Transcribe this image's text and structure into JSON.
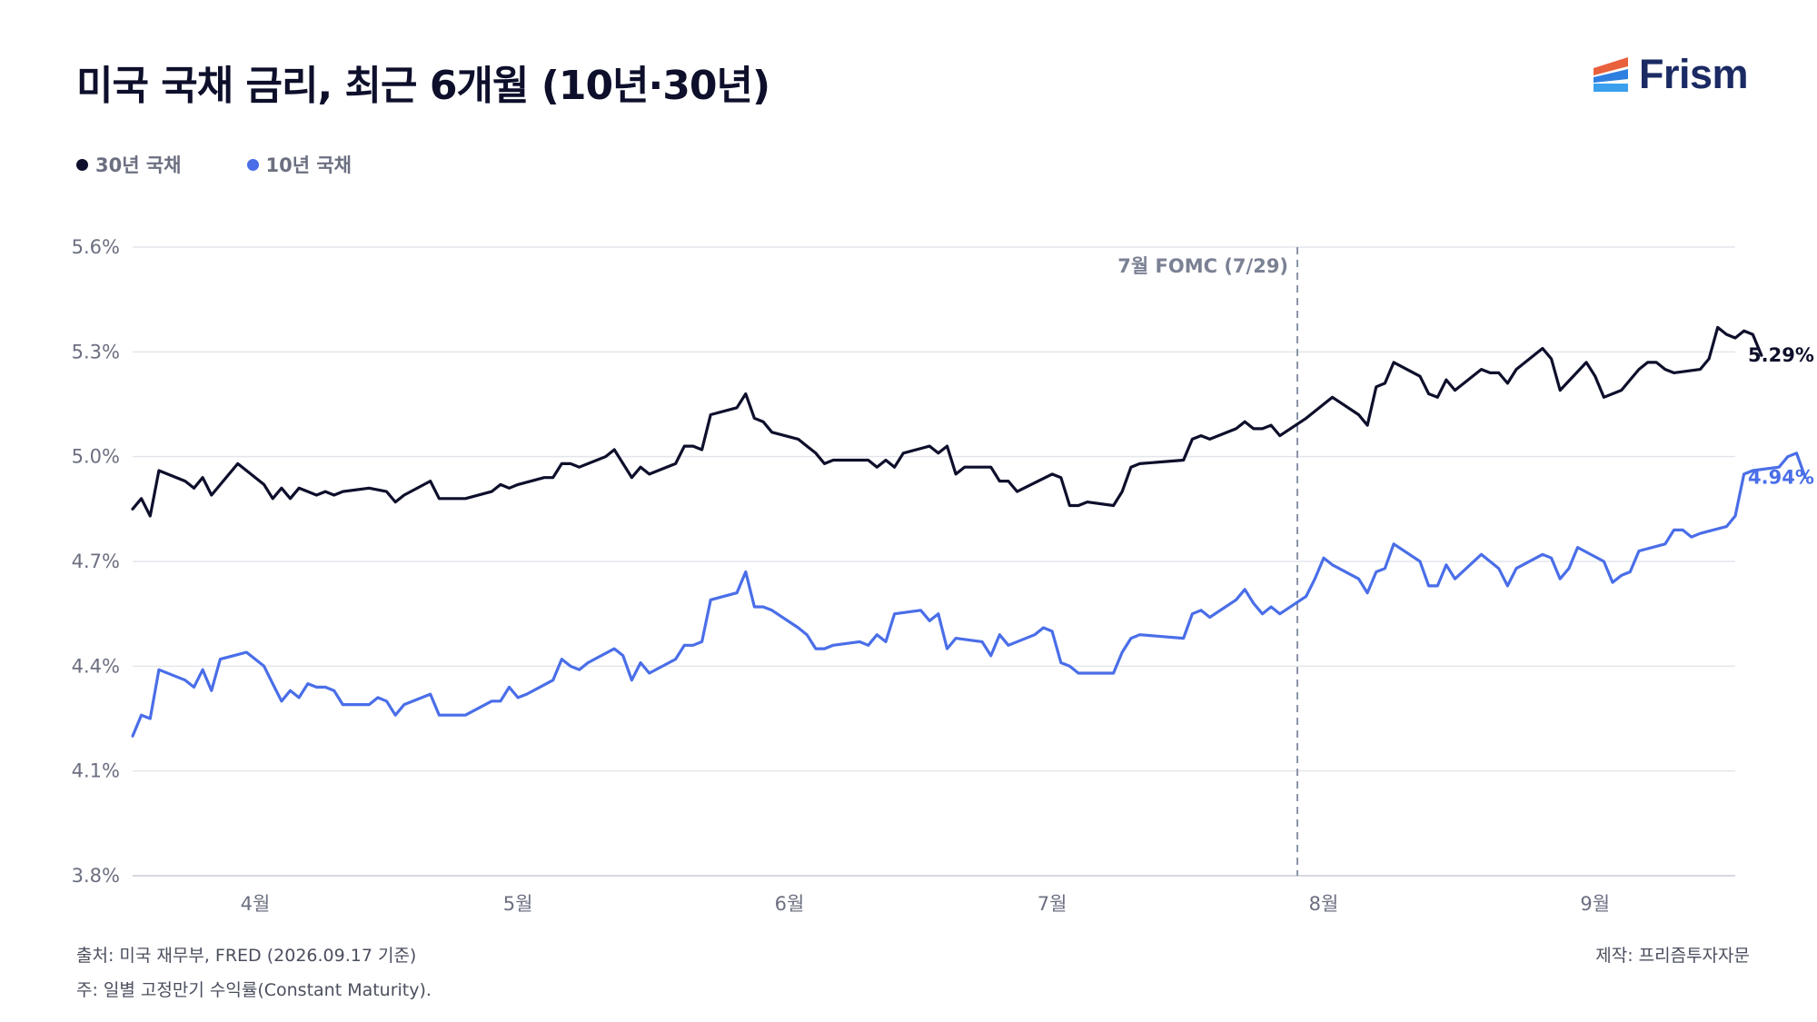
{
  "title": "미국 국채 금리, 최근 6개월 (10년·30년)",
  "brand": {
    "name": "Frism",
    "logo_icon": "stacked-stripes-logo-icon",
    "colors": [
      "#e8603c",
      "#2e7fe0",
      "#3aa0ee"
    ]
  },
  "legend": [
    {
      "label": "30년 국채",
      "color": "#0d0f2b"
    },
    {
      "label": "10년 국채",
      "color": "#4a6ee8"
    }
  ],
  "footer": {
    "source": "출처: 미국 재무부, FRED (2026.09.17 기준)",
    "note": "주: 일별 고정만기 수익률(Constant Maturity).",
    "credit": "제작: 프리즘투자자문"
  },
  "chart_data": {
    "type": "line",
    "x_type": "date",
    "xlim": [
      "2026-03-18",
      "2026-09-17"
    ],
    "ylim": [
      3.8,
      5.6
    ],
    "y_ticks": [
      "5.6%",
      "5.3%",
      "5.0%",
      "4.7%",
      "4.4%",
      "4.1%",
      "3.8%"
    ],
    "x_ticks": [
      {
        "date": "2026-04-01",
        "label": "4월"
      },
      {
        "date": "2026-05-01",
        "label": "5월"
      },
      {
        "date": "2026-06-01",
        "label": "6월"
      },
      {
        "date": "2026-07-01",
        "label": "7월"
      },
      {
        "date": "2026-08-01",
        "label": "8월"
      },
      {
        "date": "2026-09-01",
        "label": "9월"
      }
    ],
    "grid": "horizontal",
    "annotation": {
      "date": "2026-07-29",
      "label": "7월 FOMC (7/29)",
      "style": "dashed-vertical"
    },
    "series": [
      {
        "name": "30년 국채",
        "color": "#0d0f2b",
        "end_label": "5.29%",
        "points": [
          [
            "2026-03-18",
            4.85
          ],
          [
            "2026-03-19",
            4.88
          ],
          [
            "2026-03-20",
            4.83
          ],
          [
            "2026-03-21",
            4.96
          ],
          [
            "2026-03-24",
            4.93
          ],
          [
            "2026-03-25",
            4.91
          ],
          [
            "2026-03-26",
            4.94
          ],
          [
            "2026-03-27",
            4.89
          ],
          [
            "2026-03-30",
            4.98
          ],
          [
            "2026-03-31",
            4.96
          ],
          [
            "2026-04-02",
            4.92
          ],
          [
            "2026-04-03",
            4.88
          ],
          [
            "2026-04-04",
            4.91
          ],
          [
            "2026-04-05",
            4.88
          ],
          [
            "2026-04-06",
            4.91
          ],
          [
            "2026-04-07",
            4.9
          ],
          [
            "2026-04-08",
            4.89
          ],
          [
            "2026-04-09",
            4.9
          ],
          [
            "2026-04-10",
            4.89
          ],
          [
            "2026-04-11",
            4.9
          ],
          [
            "2026-04-14",
            4.91
          ],
          [
            "2026-04-16",
            4.9
          ],
          [
            "2026-04-17",
            4.87
          ],
          [
            "2026-04-18",
            4.89
          ],
          [
            "2026-04-21",
            4.93
          ],
          [
            "2026-04-22",
            4.88
          ],
          [
            "2026-04-23",
            4.88
          ],
          [
            "2026-04-24",
            4.88
          ],
          [
            "2026-04-25",
            4.88
          ],
          [
            "2026-04-28",
            4.9
          ],
          [
            "2026-04-29",
            4.92
          ],
          [
            "2026-04-30",
            4.91
          ],
          [
            "2026-05-01",
            4.92
          ],
          [
            "2026-05-04",
            4.94
          ],
          [
            "2026-05-05",
            4.94
          ],
          [
            "2026-05-06",
            4.98
          ],
          [
            "2026-05-07",
            4.98
          ],
          [
            "2026-05-08",
            4.97
          ],
          [
            "2026-05-11",
            5.0
          ],
          [
            "2026-05-12",
            5.02
          ],
          [
            "2026-05-14",
            4.94
          ],
          [
            "2026-05-15",
            4.97
          ],
          [
            "2026-05-16",
            4.95
          ],
          [
            "2026-05-19",
            4.98
          ],
          [
            "2026-05-20",
            5.03
          ],
          [
            "2026-05-21",
            5.03
          ],
          [
            "2026-05-22",
            5.02
          ],
          [
            "2026-05-23",
            5.12
          ],
          [
            "2026-05-26",
            5.14
          ],
          [
            "2026-05-27",
            5.18
          ],
          [
            "2026-05-28",
            5.11
          ],
          [
            "2026-05-29",
            5.1
          ],
          [
            "2026-05-30",
            5.07
          ],
          [
            "2026-06-02",
            5.05
          ],
          [
            "2026-06-03",
            5.03
          ],
          [
            "2026-06-04",
            5.01
          ],
          [
            "2026-06-05",
            4.98
          ],
          [
            "2026-06-06",
            4.99
          ],
          [
            "2026-06-09",
            4.99
          ],
          [
            "2026-06-10",
            4.99
          ],
          [
            "2026-06-11",
            4.97
          ],
          [
            "2026-06-12",
            4.99
          ],
          [
            "2026-06-13",
            4.97
          ],
          [
            "2026-06-14",
            5.01
          ],
          [
            "2026-06-17",
            5.03
          ],
          [
            "2026-06-18",
            5.01
          ],
          [
            "2026-06-19",
            5.03
          ],
          [
            "2026-06-20",
            4.95
          ],
          [
            "2026-06-21",
            4.97
          ],
          [
            "2026-06-24",
            4.97
          ],
          [
            "2026-06-25",
            4.93
          ],
          [
            "2026-06-26",
            4.93
          ],
          [
            "2026-06-27",
            4.9
          ],
          [
            "2026-07-01",
            4.95
          ],
          [
            "2026-07-02",
            4.94
          ],
          [
            "2026-07-03",
            4.86
          ],
          [
            "2026-07-04",
            4.86
          ],
          [
            "2026-07-05",
            4.87
          ],
          [
            "2026-07-08",
            4.86
          ],
          [
            "2026-07-09",
            4.9
          ],
          [
            "2026-07-10",
            4.97
          ],
          [
            "2026-07-11",
            4.98
          ],
          [
            "2026-07-16",
            4.99
          ],
          [
            "2026-07-17",
            5.05
          ],
          [
            "2026-07-18",
            5.06
          ],
          [
            "2026-07-19",
            5.05
          ],
          [
            "2026-07-22",
            5.08
          ],
          [
            "2026-07-23",
            5.1
          ],
          [
            "2026-07-24",
            5.08
          ],
          [
            "2026-07-25",
            5.08
          ],
          [
            "2026-07-26",
            5.09
          ],
          [
            "2026-07-27",
            5.06
          ],
          [
            "2026-07-30",
            5.11
          ],
          [
            "2026-08-02",
            5.17
          ],
          [
            "2026-08-05",
            5.12
          ],
          [
            "2026-08-06",
            5.09
          ],
          [
            "2026-08-07",
            5.2
          ],
          [
            "2026-08-08",
            5.21
          ],
          [
            "2026-08-09",
            5.27
          ],
          [
            "2026-08-12",
            5.23
          ],
          [
            "2026-08-13",
            5.18
          ],
          [
            "2026-08-14",
            5.17
          ],
          [
            "2026-08-15",
            5.22
          ],
          [
            "2026-08-16",
            5.19
          ],
          [
            "2026-08-19",
            5.25
          ],
          [
            "2026-08-20",
            5.24
          ],
          [
            "2026-08-21",
            5.24
          ],
          [
            "2026-08-22",
            5.21
          ],
          [
            "2026-08-23",
            5.25
          ],
          [
            "2026-08-26",
            5.31
          ],
          [
            "2026-08-27",
            5.28
          ],
          [
            "2026-08-28",
            5.19
          ],
          [
            "2026-08-31",
            5.27
          ],
          [
            "2026-09-01",
            5.23
          ],
          [
            "2026-09-02",
            5.17
          ],
          [
            "2026-09-04",
            5.19
          ],
          [
            "2026-09-05",
            5.22
          ],
          [
            "2026-09-06",
            5.25
          ],
          [
            "2026-09-07",
            5.27
          ],
          [
            "2026-09-08",
            5.27
          ],
          [
            "2026-09-09",
            5.25
          ],
          [
            "2026-09-10",
            5.24
          ],
          [
            "2026-09-13",
            5.25
          ],
          [
            "2026-09-14",
            5.28
          ],
          [
            "2026-09-15",
            5.37
          ],
          [
            "2026-09-16",
            5.35
          ],
          [
            "2026-09-17",
            5.34
          ],
          [
            "2026-09-18",
            5.36
          ],
          [
            "2026-09-19",
            5.35
          ],
          [
            "2026-09-20",
            5.29
          ]
        ]
      },
      {
        "name": "10년 국채",
        "color": "#4a6ee8",
        "end_label": "4.94%",
        "points": [
          [
            "2026-03-18",
            4.2
          ],
          [
            "2026-03-19",
            4.26
          ],
          [
            "2026-03-20",
            4.25
          ],
          [
            "2026-03-21",
            4.39
          ],
          [
            "2026-03-24",
            4.36
          ],
          [
            "2026-03-25",
            4.34
          ],
          [
            "2026-03-26",
            4.39
          ],
          [
            "2026-03-27",
            4.33
          ],
          [
            "2026-03-28",
            4.42
          ],
          [
            "2026-03-31",
            4.44
          ],
          [
            "2026-04-02",
            4.4
          ],
          [
            "2026-04-03",
            4.35
          ],
          [
            "2026-04-04",
            4.3
          ],
          [
            "2026-04-05",
            4.33
          ],
          [
            "2026-04-06",
            4.31
          ],
          [
            "2026-04-07",
            4.35
          ],
          [
            "2026-04-08",
            4.34
          ],
          [
            "2026-04-09",
            4.34
          ],
          [
            "2026-04-10",
            4.33
          ],
          [
            "2026-04-11",
            4.29
          ],
          [
            "2026-04-14",
            4.29
          ],
          [
            "2026-04-15",
            4.31
          ],
          [
            "2026-04-16",
            4.3
          ],
          [
            "2026-04-17",
            4.26
          ],
          [
            "2026-04-18",
            4.29
          ],
          [
            "2026-04-21",
            4.32
          ],
          [
            "2026-04-22",
            4.26
          ],
          [
            "2026-04-23",
            4.26
          ],
          [
            "2026-04-24",
            4.26
          ],
          [
            "2026-04-25",
            4.26
          ],
          [
            "2026-04-28",
            4.3
          ],
          [
            "2026-04-29",
            4.3
          ],
          [
            "2026-04-30",
            4.34
          ],
          [
            "2026-05-01",
            4.31
          ],
          [
            "2026-05-02",
            4.32
          ],
          [
            "2026-05-05",
            4.36
          ],
          [
            "2026-05-06",
            4.42
          ],
          [
            "2026-05-07",
            4.4
          ],
          [
            "2026-05-08",
            4.39
          ],
          [
            "2026-05-09",
            4.41
          ],
          [
            "2026-05-12",
            4.45
          ],
          [
            "2026-05-13",
            4.43
          ],
          [
            "2026-05-14",
            4.36
          ],
          [
            "2026-05-15",
            4.41
          ],
          [
            "2026-05-16",
            4.38
          ],
          [
            "2026-05-19",
            4.42
          ],
          [
            "2026-05-20",
            4.46
          ],
          [
            "2026-05-21",
            4.46
          ],
          [
            "2026-05-22",
            4.47
          ],
          [
            "2026-05-23",
            4.59
          ],
          [
            "2026-05-26",
            4.61
          ],
          [
            "2026-05-27",
            4.67
          ],
          [
            "2026-05-28",
            4.57
          ],
          [
            "2026-05-29",
            4.57
          ],
          [
            "2026-05-30",
            4.56
          ],
          [
            "2026-06-02",
            4.51
          ],
          [
            "2026-06-03",
            4.49
          ],
          [
            "2026-06-04",
            4.45
          ],
          [
            "2026-06-05",
            4.45
          ],
          [
            "2026-06-06",
            4.46
          ],
          [
            "2026-06-09",
            4.47
          ],
          [
            "2026-06-10",
            4.46
          ],
          [
            "2026-06-11",
            4.49
          ],
          [
            "2026-06-12",
            4.47
          ],
          [
            "2026-06-13",
            4.55
          ],
          [
            "2026-06-16",
            4.56
          ],
          [
            "2026-06-17",
            4.53
          ],
          [
            "2026-06-18",
            4.55
          ],
          [
            "2026-06-19",
            4.45
          ],
          [
            "2026-06-20",
            4.48
          ],
          [
            "2026-06-23",
            4.47
          ],
          [
            "2026-06-24",
            4.43
          ],
          [
            "2026-06-25",
            4.49
          ],
          [
            "2026-06-26",
            4.46
          ],
          [
            "2026-06-29",
            4.49
          ],
          [
            "2026-06-30",
            4.51
          ],
          [
            "2026-07-01",
            4.5
          ],
          [
            "2026-07-02",
            4.41
          ],
          [
            "2026-07-03",
            4.4
          ],
          [
            "2026-07-04",
            4.38
          ],
          [
            "2026-07-07",
            4.38
          ],
          [
            "2026-07-08",
            4.38
          ],
          [
            "2026-07-09",
            4.44
          ],
          [
            "2026-07-10",
            4.48
          ],
          [
            "2026-07-11",
            4.49
          ],
          [
            "2026-07-16",
            4.48
          ],
          [
            "2026-07-17",
            4.55
          ],
          [
            "2026-07-18",
            4.56
          ],
          [
            "2026-07-19",
            4.54
          ],
          [
            "2026-07-22",
            4.59
          ],
          [
            "2026-07-23",
            4.62
          ],
          [
            "2026-07-24",
            4.58
          ],
          [
            "2026-07-25",
            4.55
          ],
          [
            "2026-07-26",
            4.57
          ],
          [
            "2026-07-27",
            4.55
          ],
          [
            "2026-07-30",
            4.6
          ],
          [
            "2026-07-31",
            4.65
          ],
          [
            "2026-08-01",
            4.71
          ],
          [
            "2026-08-02",
            4.69
          ],
          [
            "2026-08-05",
            4.65
          ],
          [
            "2026-08-06",
            4.61
          ],
          [
            "2026-08-07",
            4.67
          ],
          [
            "2026-08-08",
            4.68
          ],
          [
            "2026-08-09",
            4.75
          ],
          [
            "2026-08-12",
            4.7
          ],
          [
            "2026-08-13",
            4.63
          ],
          [
            "2026-08-14",
            4.63
          ],
          [
            "2026-08-15",
            4.69
          ],
          [
            "2026-08-16",
            4.65
          ],
          [
            "2026-08-19",
            4.72
          ],
          [
            "2026-08-20",
            4.7
          ],
          [
            "2026-08-21",
            4.68
          ],
          [
            "2026-08-22",
            4.63
          ],
          [
            "2026-08-23",
            4.68
          ],
          [
            "2026-08-26",
            4.72
          ],
          [
            "2026-08-27",
            4.71
          ],
          [
            "2026-08-28",
            4.65
          ],
          [
            "2026-08-29",
            4.68
          ],
          [
            "2026-08-30",
            4.74
          ],
          [
            "2026-09-02",
            4.7
          ],
          [
            "2026-09-03",
            4.64
          ],
          [
            "2026-09-04",
            4.66
          ],
          [
            "2026-09-05",
            4.67
          ],
          [
            "2026-09-06",
            4.73
          ],
          [
            "2026-09-09",
            4.75
          ],
          [
            "2026-09-10",
            4.79
          ],
          [
            "2026-09-11",
            4.79
          ],
          [
            "2026-09-12",
            4.77
          ],
          [
            "2026-09-13",
            4.78
          ],
          [
            "2026-09-16",
            4.8
          ],
          [
            "2026-09-17",
            4.83
          ],
          [
            "2026-09-18",
            4.95
          ],
          [
            "2026-09-19",
            4.96
          ],
          [
            "2026-09-22",
            4.97
          ],
          [
            "2026-09-23",
            5.0
          ],
          [
            "2026-09-24",
            5.01
          ],
          [
            "2026-09-25",
            4.94
          ]
        ]
      }
    ]
  }
}
